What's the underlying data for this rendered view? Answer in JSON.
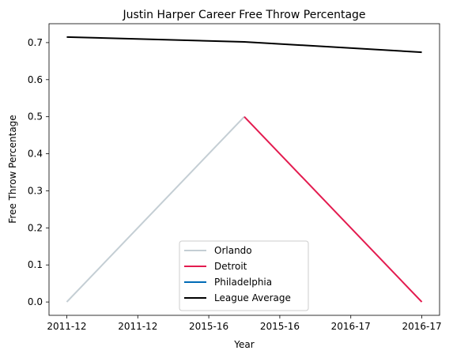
{
  "chart_data": {
    "type": "line",
    "title": "Justin Harper  Career Free Throw Percentage",
    "xlabel": "Year",
    "ylabel": "Free Throw Percentage",
    "x_tick_labels": [
      "2011-12",
      "2011-12",
      "2015-16",
      "2015-16",
      "2016-17",
      "2016-17"
    ],
    "y_ticks": [
      0.0,
      0.1,
      0.2,
      0.3,
      0.4,
      0.5,
      0.6,
      0.7
    ],
    "y_tick_labels": [
      "0.0",
      "0.1",
      "0.2",
      "0.3",
      "0.4",
      "0.5",
      "0.6",
      "0.7"
    ],
    "xlim": [
      -0.1,
      2.1
    ],
    "ylim": [
      -0.036,
      0.751
    ],
    "grid": false,
    "legend_position": "lower center",
    "series": [
      {
        "name": "Orlando",
        "color": "#c4ced4",
        "points": [
          [
            0,
            0.0
          ],
          [
            1,
            0.5
          ]
        ]
      },
      {
        "name": "Detroit",
        "color": "#e31b4f",
        "points": [
          [
            1,
            0.5
          ],
          [
            2,
            0.0
          ]
        ]
      },
      {
        "name": "Philadelphia",
        "color": "#006bb6",
        "points": []
      },
      {
        "name": "League Average",
        "color": "#000000",
        "points": [
          [
            0,
            0.715
          ],
          [
            1,
            0.702
          ],
          [
            2,
            0.674
          ]
        ]
      }
    ]
  }
}
